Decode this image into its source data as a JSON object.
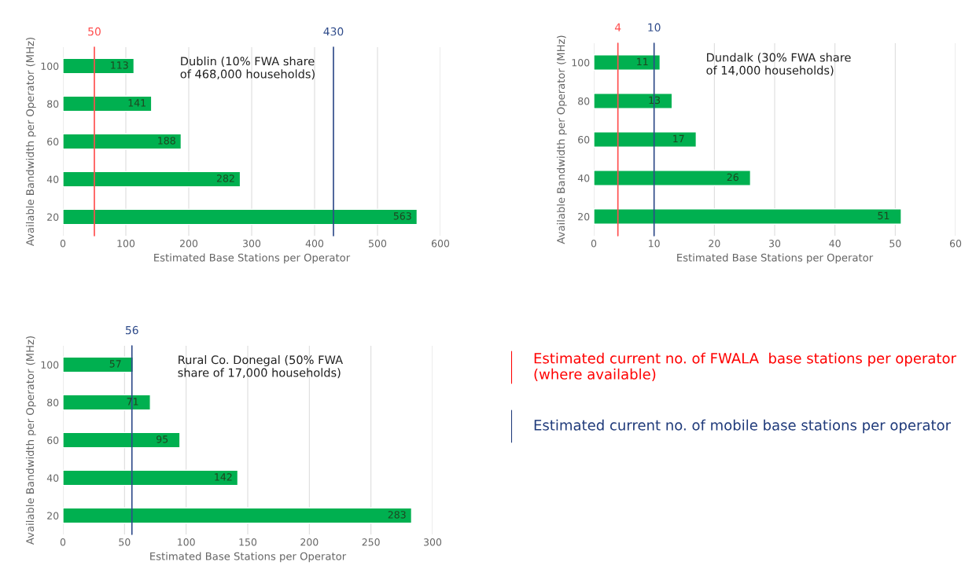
{
  "chart_data": [
    {
      "type": "bar",
      "orientation": "horizontal",
      "categories": [
        "100",
        "80",
        "60",
        "40",
        "20"
      ],
      "values": [
        113,
        141,
        188,
        282,
        563
      ],
      "color": "#00b050",
      "data_labels": true,
      "xlabel": "Estimated Base Stations per Operator",
      "ylabel": "Available Bandwidth per Operator (MHz)",
      "xlim": [
        0,
        600
      ],
      "xticks": [
        0,
        100,
        200,
        300,
        400,
        500,
        600
      ],
      "grid": "x",
      "annotations": [
        "Dublin (10% FWA share\nof 468,000 households)"
      ],
      "ref_lines": [
        {
          "axis": "x",
          "value": 50,
          "label": "50",
          "color": "#ff4d4d"
        },
        {
          "axis": "x",
          "value": 430,
          "label": "430",
          "color": "#2f4b8a"
        }
      ]
    },
    {
      "type": "bar",
      "orientation": "horizontal",
      "categories": [
        "100",
        "80",
        "60",
        "40",
        "20"
      ],
      "values": [
        11,
        13,
        17,
        26,
        51
      ],
      "color": "#00b050",
      "data_labels": true,
      "xlabel": "Estimated Base Stations per Operator",
      "ylabel": "Available Bandwidth per Operator (MHz)",
      "xlim": [
        0,
        60
      ],
      "xticks": [
        0,
        10,
        20,
        30,
        40,
        50,
        60
      ],
      "grid": "x",
      "annotations": [
        "Dundalk (30% FWA share\nof 14,000 households)"
      ],
      "ref_lines": [
        {
          "axis": "x",
          "value": 4,
          "label": "4",
          "color": "#ff4d4d"
        },
        {
          "axis": "x",
          "value": 10,
          "label": "10",
          "color": "#2f4b8a"
        }
      ]
    },
    {
      "type": "bar",
      "orientation": "horizontal",
      "categories": [
        "100",
        "80",
        "60",
        "40",
        "20"
      ],
      "values": [
        57,
        71,
        95,
        142,
        283
      ],
      "color": "#00b050",
      "data_labels": true,
      "xlabel": "Estimated Base Stations per Operator",
      "ylabel": "Available Bandwidth per Operator (MHz)",
      "xlim": [
        0,
        300
      ],
      "xticks": [
        0,
        50,
        100,
        150,
        200,
        250,
        300
      ],
      "grid": "x",
      "annotations": [
        "Rural Co. Donegal (50% FWA\nshare of 17,000 households)"
      ],
      "ref_lines": [
        {
          "axis": "x",
          "value": 56,
          "label": "56",
          "color": "#2f4b8a"
        }
      ]
    },
    {
      "type": "other",
      "legend": "left",
      "series": [
        {
          "name": "Estimated current no. of FWALA  base stations per operator (where available)",
          "color": "#ff0000"
        },
        {
          "name": "Estimated current no. of mobile base stations per operator",
          "color": "#1f3a7a"
        }
      ]
    }
  ]
}
